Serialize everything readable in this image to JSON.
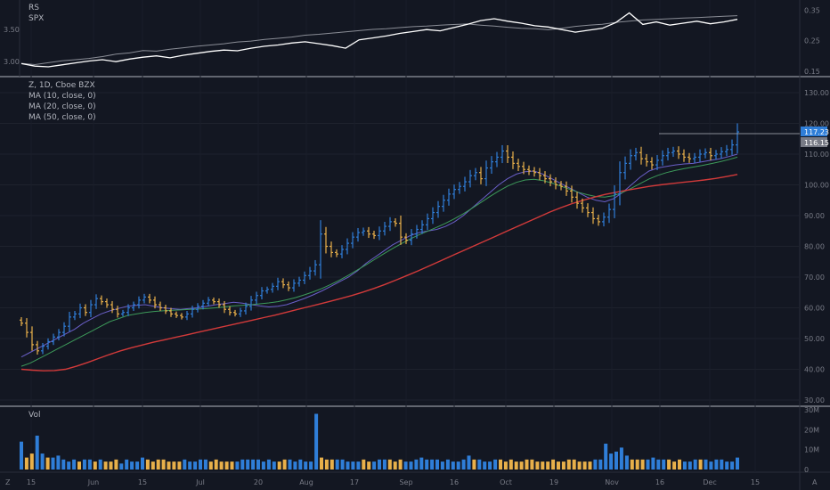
{
  "legend": {
    "rs_label": "RS",
    "spx_label": "SPX",
    "main_title": "Z, 1D, Cboe BZX",
    "ma10": "MA (10, close, 0)",
    "ma20": "MA (20, close, 0)",
    "ma50": "MA (50, close, 0)",
    "vol_label": "Vol"
  },
  "corner": {
    "left": "Z",
    "right": "A"
  },
  "colors": {
    "background": "#131722",
    "up": "#2f7ed8",
    "down": "#e8b04a",
    "ma10": "#6a5fc8",
    "ma20": "#3d9a5a",
    "ma50": "#d23a3a",
    "rs": "#ffffff",
    "spx": "#8a8d96",
    "price_tag": "#2f7ed8",
    "ref_tag": "#787b86"
  },
  "price_tags": {
    "last": "117.23",
    "reference": "116.15"
  },
  "chart_data": [
    {
      "type": "line",
      "panel": "rs",
      "left_axis": {
        "ticks": [
          "3.50",
          "3.00"
        ]
      },
      "right_axis": {
        "ticks": [
          "0.35",
          "0.25",
          "0.15"
        ]
      },
      "series": [
        {
          "name": "RS",
          "values": [
            2.97,
            2.93,
            2.92,
            2.95,
            2.98,
            3.01,
            3.03,
            3.0,
            3.04,
            3.07,
            3.09,
            3.06,
            3.1,
            3.13,
            3.16,
            3.18,
            3.17,
            3.21,
            3.24,
            3.26,
            3.29,
            3.31,
            3.28,
            3.25,
            3.21,
            3.34,
            3.37,
            3.4,
            3.44,
            3.47,
            3.5,
            3.48,
            3.53,
            3.58,
            3.64,
            3.67,
            3.63,
            3.6,
            3.56,
            3.54,
            3.5,
            3.46,
            3.49,
            3.52,
            3.61,
            3.76,
            3.58,
            3.62,
            3.57,
            3.6,
            3.63,
            3.59,
            3.62,
            3.66
          ]
        },
        {
          "name": "SPX",
          "values": [
            0.176,
            0.172,
            0.178,
            0.184,
            0.188,
            0.192,
            0.198,
            0.206,
            0.21,
            0.218,
            0.216,
            0.222,
            0.227,
            0.232,
            0.236,
            0.24,
            0.246,
            0.249,
            0.254,
            0.258,
            0.262,
            0.268,
            0.271,
            0.275,
            0.279,
            0.283,
            0.287,
            0.289,
            0.293,
            0.296,
            0.298,
            0.301,
            0.303,
            0.305,
            0.301,
            0.298,
            0.294,
            0.291,
            0.289,
            0.286,
            0.291,
            0.297,
            0.301,
            0.304,
            0.31,
            0.314,
            0.318,
            0.32,
            0.322,
            0.324,
            0.326,
            0.328,
            0.33,
            0.332
          ]
        }
      ]
    },
    {
      "type": "ohlc",
      "panel": "price",
      "ylim": [
        30,
        130
      ],
      "y_ticks": [
        "130.00",
        "120.00",
        "110.00",
        "100.00",
        "90.00",
        "80.00",
        "70.00",
        "60.00",
        "50.00",
        "40.00",
        "30.00"
      ],
      "x_ticks": [
        "15",
        "Jun",
        "15",
        "Jul",
        "20",
        "Aug",
        "17",
        "Sep",
        "16",
        "Oct",
        "19",
        "Nov",
        "16",
        "Dec",
        "15"
      ],
      "close": [
        55.0,
        52.0,
        48.0,
        46.0,
        47.5,
        49.0,
        50.5,
        52.0,
        54.0,
        57.0,
        58.0,
        60.0,
        58.5,
        61.0,
        63.0,
        62.0,
        61.0,
        59.5,
        58.0,
        58.5,
        60.0,
        61.0,
        62.5,
        63.5,
        62.5,
        61.0,
        60.0,
        59.0,
        58.0,
        57.5,
        57.0,
        58.0,
        59.5,
        60.5,
        61.5,
        62.5,
        62.0,
        61.0,
        59.5,
        58.5,
        58.0,
        59.0,
        60.5,
        62.5,
        64.0,
        65.5,
        66.0,
        67.0,
        68.5,
        67.5,
        66.5,
        68.0,
        69.0,
        70.5,
        72.0,
        74.0,
        84.0,
        80.0,
        78.0,
        77.5,
        79.0,
        81.0,
        83.0,
        84.5,
        85.0,
        84.0,
        83.5,
        85.0,
        86.5,
        88.0,
        87.5,
        83.0,
        82.0,
        84.0,
        85.5,
        87.0,
        89.0,
        91.0,
        93.0,
        95.0,
        97.0,
        98.5,
        99.5,
        101.0,
        103.0,
        104.0,
        102.0,
        105.5,
        107.5,
        109.0,
        111.0,
        109.0,
        107.0,
        106.0,
        105.0,
        104.5,
        104.0,
        103.0,
        102.0,
        101.0,
        100.0,
        99.5,
        98.0,
        96.0,
        94.0,
        92.5,
        91.0,
        89.0,
        88.0,
        89.5,
        92.0,
        97.0,
        104.0,
        107.0,
        109.5,
        110.5,
        108.5,
        107.5,
        106.5,
        108.0,
        109.5,
        110.5,
        111.0,
        110.0,
        109.0,
        108.5,
        109.0,
        110.0,
        110.5,
        109.5,
        110.0,
        110.8,
        111.5,
        113.0,
        117.23
      ],
      "last_close": 117.23
    },
    {
      "type": "line",
      "panel": "price",
      "series": [
        {
          "name": "MA (10, close, 0)",
          "values": [
            44,
            45.5,
            47,
            48.5,
            50,
            51.5,
            53,
            55,
            56.5,
            58,
            59,
            59.8,
            60.5,
            60.8,
            61,
            60.5,
            60,
            59.7,
            59.5,
            59.8,
            60,
            60.5,
            61,
            61.4,
            61.8,
            61.5,
            61,
            60.6,
            60.3,
            60.5,
            61,
            62,
            63,
            64.2,
            65.5,
            67,
            68.5,
            70,
            72,
            74.5,
            76.5,
            78.5,
            80.5,
            82,
            83.5,
            84.5,
            85,
            85.5,
            86.5,
            88,
            90,
            92.5,
            95,
            97.5,
            100,
            102,
            103.5,
            104.3,
            104.5,
            103.5,
            102,
            100.5,
            99,
            97.5,
            96,
            95,
            94.5,
            95.5,
            97.5,
            100,
            102.5,
            104.5,
            105.5,
            106,
            106.5,
            106.8,
            107,
            107.5,
            108,
            108.5,
            109.2,
            110
          ]
        },
        {
          "name": "MA (20, close, 0)",
          "values": [
            41,
            42,
            43.5,
            45,
            46.5,
            48,
            49.5,
            51,
            52.5,
            54,
            55.5,
            56.5,
            57.5,
            58,
            58.5,
            58.8,
            59,
            59.2,
            59.3,
            59.5,
            59.6,
            59.8,
            60,
            60.3,
            60.6,
            60.8,
            61,
            61.3,
            61.6,
            62,
            62.6,
            63.3,
            64.2,
            65.2,
            66.3,
            67.6,
            69,
            70.6,
            72.3,
            74,
            75.8,
            77.6,
            79.3,
            80.9,
            82.4,
            83.8,
            85,
            86.2,
            87.5,
            89,
            90.6,
            92.4,
            94.3,
            96.2,
            98,
            99.6,
            100.8,
            101.6,
            101.8,
            101.4,
            100.6,
            99.6,
            98.6,
            97.6,
            96.8,
            96.2,
            96,
            96.5,
            97.5,
            98.9,
            100.4,
            101.9,
            103.1,
            104,
            104.7,
            105.3,
            105.8,
            106.3,
            106.9,
            107.5,
            108.2,
            109
          ]
        },
        {
          "name": "MA (50, close, 0)",
          "values": [
            40,
            39.7,
            39.5,
            39.6,
            40,
            41,
            42.2,
            43.5,
            44.8,
            46,
            47,
            47.9,
            48.8,
            49.6,
            50.4,
            51.2,
            52,
            52.8,
            53.6,
            54.4,
            55.2,
            56,
            56.8,
            57.6,
            58.5,
            59.4,
            60.3,
            61.2,
            62.1,
            63,
            64,
            65.1,
            66.3,
            67.6,
            69,
            70.5,
            72,
            73.6,
            75.2,
            76.8,
            78.4,
            80,
            81.6,
            83.2,
            84.8,
            86.4,
            88,
            89.6,
            91.2,
            92.6,
            93.9,
            95,
            96,
            96.9,
            97.6,
            98.3,
            98.9,
            99.5,
            100,
            100.4,
            100.8,
            101.2,
            101.6,
            102.1,
            102.7,
            103.4
          ]
        }
      ]
    },
    {
      "type": "bar",
      "panel": "volume",
      "y_ticks": [
        "30M",
        "20M",
        "10M",
        "0"
      ],
      "ylim": [
        0,
        30
      ],
      "values": [
        14,
        6,
        8,
        17,
        8,
        6,
        6,
        7,
        5,
        4,
        5,
        4,
        5,
        5,
        4,
        5,
        4,
        4,
        5,
        3,
        5,
        4,
        4,
        6,
        5,
        4,
        5,
        5,
        4,
        4,
        4,
        5,
        4,
        4,
        5,
        5,
        4,
        5,
        4,
        4,
        4,
        4,
        5,
        5,
        5,
        5,
        4,
        5,
        4,
        4,
        5,
        5,
        4,
        5,
        4,
        4,
        28,
        6,
        5,
        5,
        5,
        5,
        4,
        4,
        4,
        5,
        4,
        4,
        5,
        5,
        5,
        4,
        5,
        4,
        4,
        5,
        6,
        5,
        5,
        5,
        4,
        5,
        4,
        4,
        5,
        7,
        5,
        5,
        4,
        4,
        5,
        5,
        4,
        5,
        4,
        4,
        5,
        5,
        4,
        4,
        4,
        5,
        4,
        4,
        5,
        5,
        4,
        4,
        4,
        5,
        5,
        13,
        8,
        9,
        11,
        7,
        5,
        5,
        5,
        5,
        6,
        5,
        5,
        5,
        4,
        5,
        4,
        4,
        5,
        5,
        5,
        4,
        5,
        5,
        4,
        4,
        6
      ],
      "up": [
        true,
        false,
        false,
        true,
        true,
        false,
        true,
        true,
        true,
        true,
        true,
        false,
        true,
        true,
        false,
        true,
        false,
        false,
        false,
        true,
        true,
        true,
        true,
        true,
        false,
        false,
        false,
        false,
        false,
        false,
        false,
        true,
        true,
        true,
        true,
        true,
        false,
        false,
        false,
        false,
        false,
        true,
        true,
        true,
        true,
        true,
        true,
        true,
        true,
        false,
        false,
        true,
        true,
        true,
        true,
        true,
        true,
        false,
        false,
        false,
        true,
        true,
        true,
        true,
        true,
        false,
        false,
        true,
        true,
        true,
        false,
        false,
        false,
        true,
        true,
        true,
        true,
        true,
        true,
        true,
        true,
        true,
        true,
        true,
        true,
        true,
        false,
        true,
        true,
        true,
        true,
        false,
        false,
        false,
        false,
        false,
        false,
        false,
        false,
        false,
        false,
        false,
        false,
        false,
        false,
        false,
        false,
        false,
        false,
        true,
        true,
        true,
        true,
        true,
        true,
        true,
        false,
        false,
        false,
        true,
        true,
        true,
        true,
        false,
        false,
        false,
        true,
        true,
        true,
        false,
        true,
        true,
        true,
        true,
        true,
        true,
        true
      ]
    }
  ]
}
